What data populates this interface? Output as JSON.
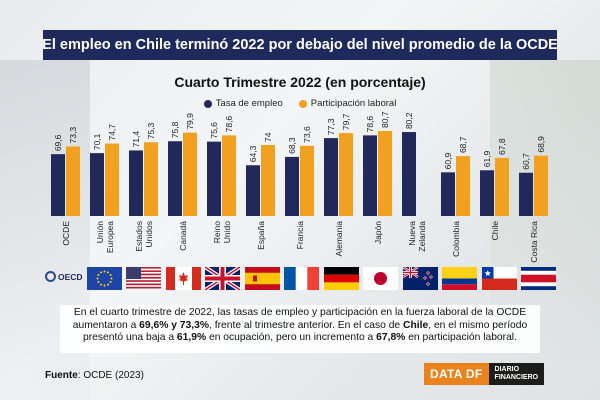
{
  "header": {
    "title": "El empleo en Chile terminó 2022 por debajo del nivel promedio de la OCDE"
  },
  "colors": {
    "employment": "#22285a",
    "participation": "#f2a01f",
    "title_bg": "#1f2a5c"
  },
  "chart_data": {
    "type": "bar",
    "title": "Cuarto Trimestre 2022 (en porcentaje)",
    "categories": [
      [
        "OCDE"
      ],
      [
        "Unión",
        "Europea"
      ],
      [
        "Estados",
        "Unidos"
      ],
      [
        "Canadá"
      ],
      [
        "Reino",
        "Unido"
      ],
      [
        "España"
      ],
      [
        "Francia"
      ],
      [
        "Alemania"
      ],
      [
        "Japón"
      ],
      [
        "Nueva",
        "Zelanda"
      ],
      [
        "Colombia"
      ],
      [
        "Chile"
      ],
      [
        "Costa Rica"
      ]
    ],
    "series": [
      {
        "name": "Tasa de empleo",
        "color": "#22285a",
        "values": [
          69.6,
          70.1,
          71.4,
          75.8,
          75.6,
          64.3,
          68.3,
          77.3,
          78.6,
          80.2,
          60.9,
          61.9,
          60.7
        ],
        "labels": [
          "69,6",
          "70,1",
          "71,4",
          "75,8",
          "75,6",
          "64,3",
          "68,3",
          "77,3",
          "78,6",
          "80,2",
          "60,9",
          "61,9",
          "60,7"
        ]
      },
      {
        "name": "Participación laboral",
        "color": "#f2a01f",
        "values": [
          73.3,
          74.7,
          75.3,
          79.9,
          78.6,
          74.0,
          73.6,
          79.7,
          80.7,
          null,
          68.7,
          67.8,
          68.9
        ],
        "labels": [
          "73,3",
          "74,7",
          "75,3",
          "79,9",
          "78,6",
          "74",
          "73,6",
          "79,7",
          "80,7",
          "",
          "68,7",
          "67,8",
          "68,9"
        ]
      }
    ],
    "xlabel": "",
    "ylabel": "",
    "ylim": [
      40,
      82
    ]
  },
  "flags": [
    "oecd",
    "eu",
    "usa",
    "canada",
    "uk",
    "spain",
    "france",
    "germany",
    "japan",
    "new-zealand",
    "colombia",
    "chile",
    "costa-rica"
  ],
  "oecd_logo_text": "OECD",
  "note": {
    "p1": "En el cuarto trimestre de 2022, las tasas de empleo y participación en la fuerza laboral de la OCDE aumentaron a ",
    "b1": "69,6% y 73,3%",
    "p2": ", frente al trimestre anterior. En el caso de ",
    "b2": "Chile",
    "p3": ", en el mismo período presentó una baja a ",
    "b3": "61,9%",
    "p4": " en ocupación, pero un incremento a ",
    "b4": "67,8%",
    "p5": " en participación laboral."
  },
  "source": {
    "label": "Fuente",
    "text": ": OCDE (2023)"
  },
  "brand": {
    "data_label": "DATA DF",
    "line1": "DIARIO",
    "line2": "FINANCIERO"
  }
}
